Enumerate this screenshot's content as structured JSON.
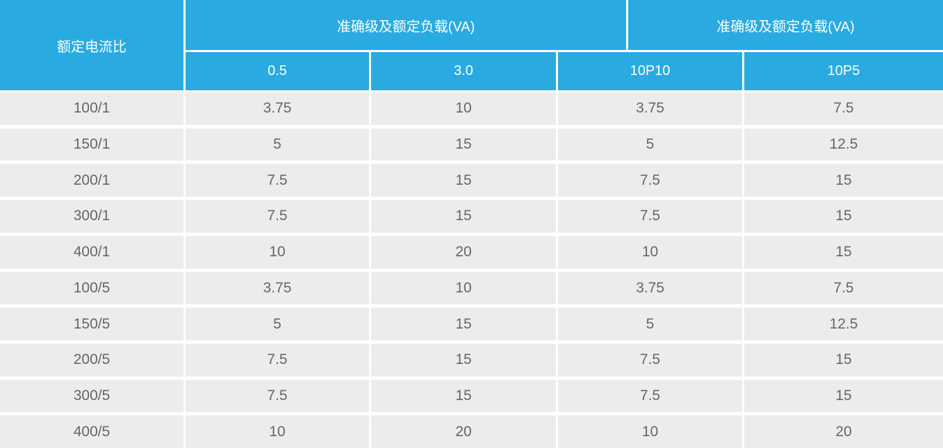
{
  "table": {
    "corner_header": "额定电流比",
    "group_headers": [
      "准确级及额定负载(VA)",
      "准确级及额定负载(VA)"
    ],
    "sub_headers": [
      "0.5",
      "3.0",
      "10P10",
      "10P5"
    ],
    "rows": [
      {
        "ratio": "100/1",
        "values": [
          "3.75",
          "10",
          "3.75",
          "7.5"
        ]
      },
      {
        "ratio": "150/1",
        "values": [
          "5",
          "15",
          "5",
          "12.5"
        ]
      },
      {
        "ratio": "200/1",
        "values": [
          "7.5",
          "15",
          "7.5",
          "15"
        ]
      },
      {
        "ratio": "300/1",
        "values": [
          "7.5",
          "15",
          "7.5",
          "15"
        ]
      },
      {
        "ratio": "400/1",
        "values": [
          "10",
          "20",
          "10",
          "15"
        ]
      },
      {
        "ratio": "100/5",
        "values": [
          "3.75",
          "10",
          "3.75",
          "7.5"
        ]
      },
      {
        "ratio": "150/5",
        "values": [
          "5",
          "15",
          "5",
          "12.5"
        ]
      },
      {
        "ratio": "200/5",
        "values": [
          "7.5",
          "15",
          "7.5",
          "15"
        ]
      },
      {
        "ratio": "300/5",
        "values": [
          "7.5",
          "15",
          "7.5",
          "15"
        ]
      },
      {
        "ratio": "400/5",
        "values": [
          "10",
          "20",
          "10",
          "20"
        ]
      }
    ]
  },
  "colors": {
    "header_bg": "#29abe2",
    "header_text": "#ffffff",
    "row_bg": "#ececec",
    "body_text": "#666666",
    "gap": "#ffffff"
  }
}
